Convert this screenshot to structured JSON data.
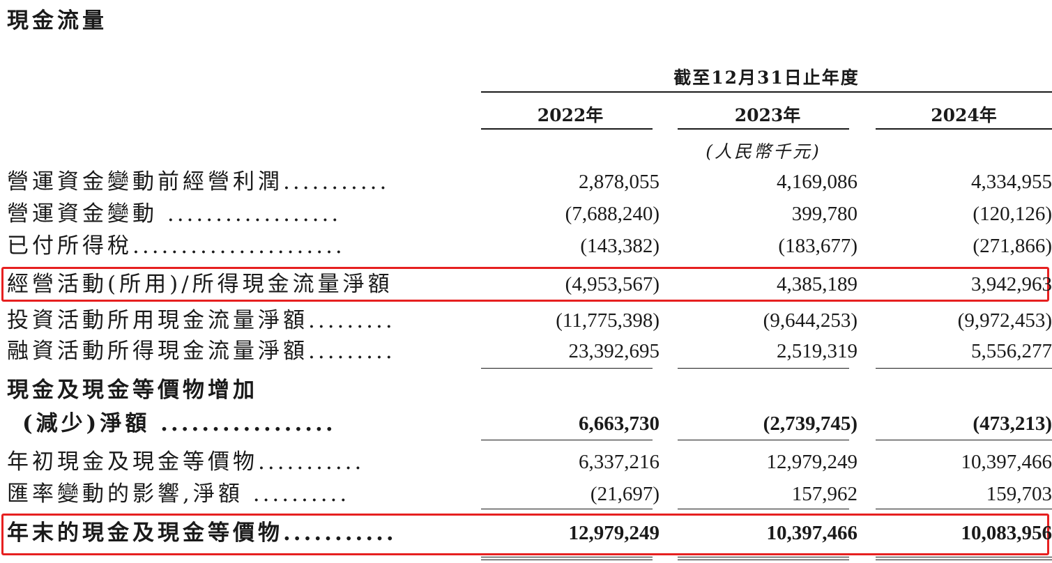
{
  "title": "現金流量",
  "header": {
    "period": "截至12月31日止年度",
    "years": [
      "2022年",
      "2023年",
      "2024年"
    ],
    "unit": "(人民幣千元)"
  },
  "rows": [
    {
      "label": "營運資金變動前經營利潤",
      "dots": "...........",
      "values": [
        "2,878,055",
        "4,169,086",
        "4,334,955"
      ]
    },
    {
      "label": "營運資金變動",
      "dots": " ..................",
      "values": [
        "(7,688,240)",
        "399,780",
        "(120,126)"
      ]
    },
    {
      "label": "已付所得稅",
      "dots": "......................",
      "values": [
        "(143,382)",
        "(183,677)",
        "(271,866)"
      ]
    },
    {
      "label": "經營活動(所用)/所得現金流量淨額",
      "dots": "",
      "values": [
        "(4,953,567)",
        "4,385,189",
        "3,942,963"
      ]
    },
    {
      "label": "投資活動所用現金流量淨額",
      "dots": ".........",
      "values": [
        "(11,775,398)",
        "(9,644,253)",
        "(9,972,453)"
      ]
    },
    {
      "label": "融資活動所得現金流量淨額",
      "dots": ".........",
      "values": [
        "23,392,695",
        "2,519,319",
        "5,556,277"
      ]
    }
  ],
  "net_change": {
    "label_line1": "現金及現金等價物增加",
    "label_line2": "(減少)淨額",
    "dots": " .................",
    "values": [
      "6,663,730",
      "(2,739,745)",
      "(473,213)"
    ]
  },
  "rows2": [
    {
      "label": "年初現金及現金等價物",
      "dots": "...........",
      "values": [
        "6,337,216",
        "12,979,249",
        "10,397,466"
      ]
    },
    {
      "label": "匯率變動的影響,淨額",
      "dots": " ..........",
      "values": [
        "(21,697)",
        "157,962",
        "159,703"
      ]
    }
  ],
  "ending": {
    "label": "年末的現金及現金等價物",
    "dots": "...........",
    "values": [
      "12,979,249",
      "10,397,466",
      "10,083,956"
    ]
  },
  "highlight_color": "#e62020"
}
